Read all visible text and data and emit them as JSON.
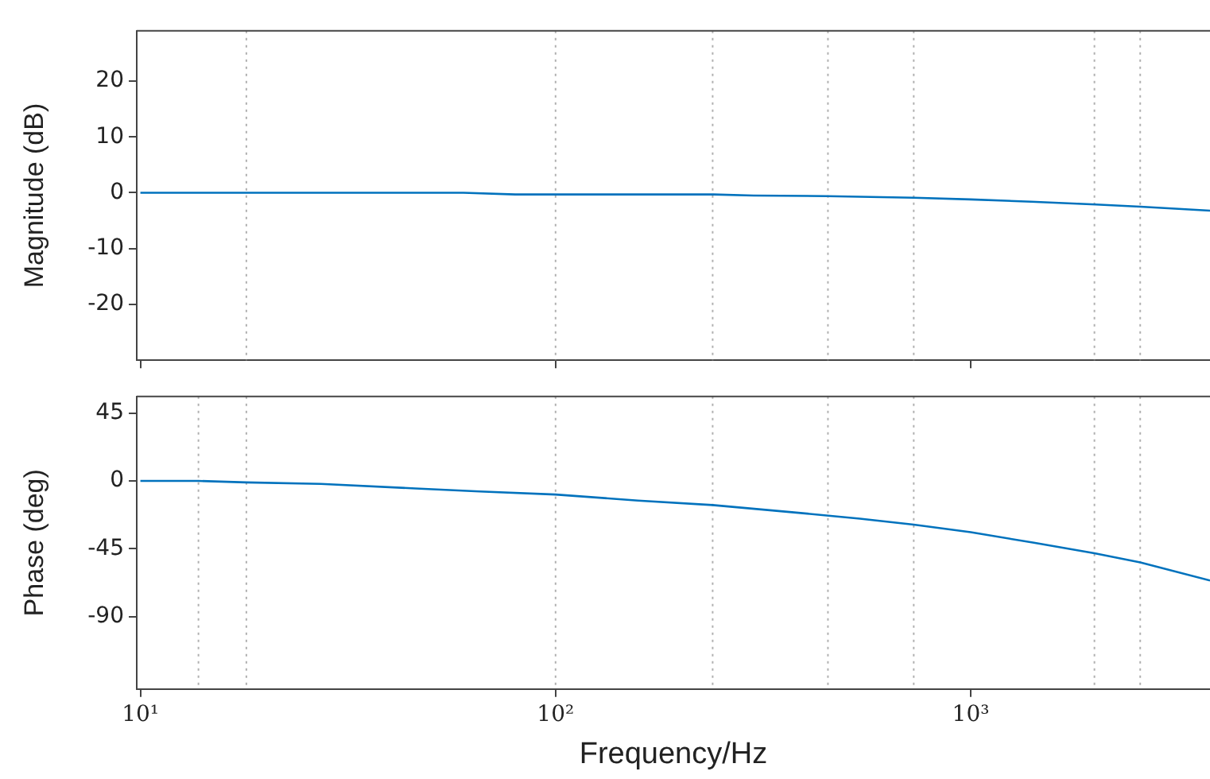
{
  "chart_data": [
    {
      "type": "line",
      "ylabel": "Magnitude (dB)",
      "log": "x",
      "grid": false,
      "tick_labels": "y",
      "xlim": [
        9.8,
        3770
      ],
      "xticks": [
        {
          "value": 10,
          "label": null
        },
        {
          "value": 100,
          "label": null
        },
        {
          "value": 1000,
          "label": null
        }
      ],
      "ylim": [
        -30,
        29
      ],
      "yticks": [
        -20,
        -10,
        0,
        10,
        20
      ],
      "x": [
        10,
        18,
        60,
        80,
        100,
        240,
        300,
        450,
        730,
        1000,
        1400,
        2000,
        2560,
        3770
      ],
      "series": [
        {
          "color": "#0072bd",
          "values": [
            0,
            0,
            0,
            -0.3,
            -0.3,
            -0.3,
            -0.5,
            -0.6,
            -0.9,
            -1.2,
            -1.6,
            -2.1,
            -2.5,
            -3.2
          ]
        }
      ],
      "ref_lines": [
        {
          "axis": "x",
          "value": 18,
          "color": "#b0b0b0",
          "line_style": "dotted"
        },
        {
          "axis": "x",
          "value": 100,
          "color": "#b0b0b0",
          "line_style": "dotted"
        },
        {
          "axis": "x",
          "value": 239,
          "color": "#b0b0b0",
          "line_style": "dotted"
        },
        {
          "axis": "x",
          "value": 453,
          "color": "#b0b0b0",
          "line_style": "dotted"
        },
        {
          "axis": "x",
          "value": 729,
          "color": "#b0b0b0",
          "line_style": "dotted"
        },
        {
          "axis": "x",
          "value": 1986,
          "color": "#b0b0b0",
          "line_style": "dotted"
        },
        {
          "axis": "x",
          "value": 2560,
          "color": "#b0b0b0",
          "line_style": "dotted"
        }
      ]
    },
    {
      "type": "line",
      "ylabel": "Phase (deg)",
      "xlabel": "Frequency/Hz",
      "log": "x",
      "grid": false,
      "xlim": [
        9.8,
        3770
      ],
      "xticks": [
        {
          "value": 10,
          "label": "10¹"
        },
        {
          "value": 100,
          "label": "10²"
        },
        {
          "value": 1000,
          "label": "10³"
        }
      ],
      "ylim": [
        -138,
        56
      ],
      "yticks": [
        -90,
        -45,
        0,
        45
      ],
      "x": [
        10,
        13.8,
        18,
        27.2,
        46,
        65.6,
        100,
        158,
        239,
        380,
        541,
        729,
        1000,
        1420,
        1986,
        2560,
        3770
      ],
      "series": [
        {
          "color": "#0072bd",
          "values": [
            0,
            0,
            -1,
            -2,
            -5,
            -7,
            -9,
            -13,
            -16,
            -21,
            -25,
            -29,
            -34,
            -41,
            -48,
            -54,
            -66
          ]
        }
      ],
      "ref_lines": [
        {
          "axis": "x",
          "value": 13.8,
          "color": "#b0b0b0",
          "line_style": "dotted"
        },
        {
          "axis": "x",
          "value": 18,
          "color": "#b0b0b0",
          "line_style": "dotted"
        },
        {
          "axis": "x",
          "value": 100,
          "color": "#b0b0b0",
          "line_style": "dotted"
        },
        {
          "axis": "x",
          "value": 239,
          "color": "#b0b0b0",
          "line_style": "dotted"
        },
        {
          "axis": "x",
          "value": 453,
          "color": "#b0b0b0",
          "line_style": "dotted"
        },
        {
          "axis": "x",
          "value": 729,
          "color": "#b0b0b0",
          "line_style": "dotted"
        },
        {
          "axis": "x",
          "value": 1986,
          "color": "#b0b0b0",
          "line_style": "dotted"
        },
        {
          "axis": "x",
          "value": 2560,
          "color": "#b0b0b0",
          "line_style": "dotted"
        }
      ]
    }
  ]
}
